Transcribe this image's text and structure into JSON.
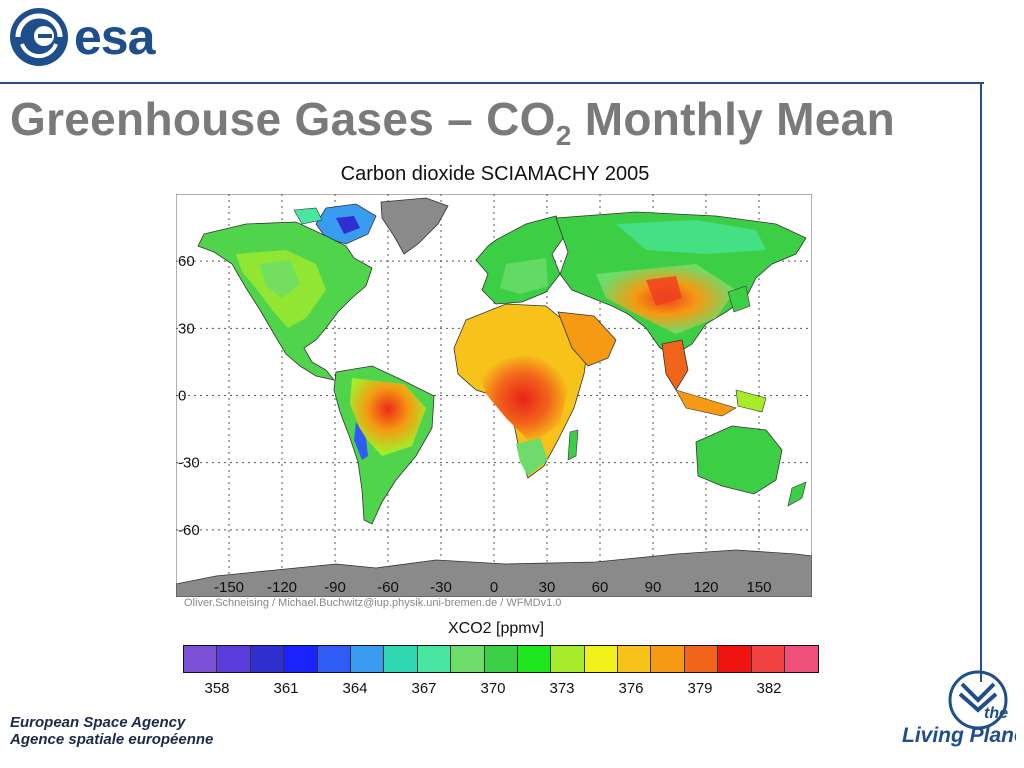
{
  "logo": {
    "text": "esa"
  },
  "slide": {
    "title_main": "Greenhouse Gases – CO",
    "title_sub": "2",
    "title_end": " Monthly Mean"
  },
  "map": {
    "title": "Carbon dioxide SCIAMACHY 2005",
    "credit": "Oliver.Schneising / Michael.Buchwitz@iup.physik.uni-bremen.de / WFMDv1.0",
    "lat_labels": [
      "60",
      "30",
      "0",
      "-30",
      "-60"
    ],
    "lon_labels": [
      "-150",
      "-120",
      "-90",
      "-60",
      "-30",
      "0",
      "30",
      "60",
      "90",
      "120",
      "150"
    ]
  },
  "colorbar": {
    "label": "XCO2 [ppmv]",
    "colors": [
      "#7b4fd6",
      "#5a3cdb",
      "#2f2fd0",
      "#1a22ff",
      "#2f5cf5",
      "#3a9cf0",
      "#2fd8b0",
      "#48e6a0",
      "#6ddc6a",
      "#3ccf45",
      "#1ee61e",
      "#a6ec2a",
      "#f2f21a",
      "#f7c21a",
      "#f59a12",
      "#f2641a",
      "#f01410",
      "#f04040",
      "#f0507a"
    ],
    "ticks": [
      "358",
      "361",
      "364",
      "367",
      "370",
      "373",
      "376",
      "379",
      "382"
    ]
  },
  "footer": {
    "line1": "European Space Agency",
    "line2": "Agence spatiale européenne"
  },
  "brand": {
    "text1": "the",
    "text2": "Living Planet"
  }
}
